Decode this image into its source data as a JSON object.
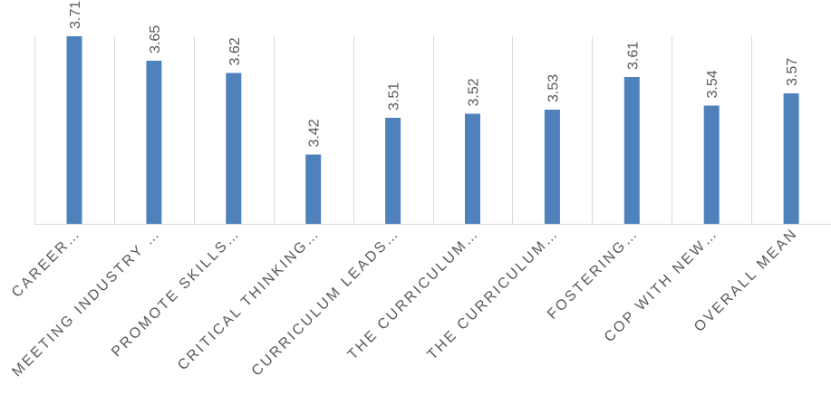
{
  "chart_data": {
    "type": "bar",
    "categories": [
      "CAREER…",
      "MEETING INDUSTRY …",
      "PROMOTE SKILLS…",
      "CRITICAL THINKING…",
      "CURRICULUM LEADS…",
      "THE CURRICULUM…",
      "THE CURRICULUM…",
      "FOSTERING…",
      "COP WITH NEW…",
      "OVERALL MEAN"
    ],
    "values": [
      3.71,
      3.65,
      3.62,
      3.42,
      3.51,
      3.52,
      3.53,
      3.61,
      3.54,
      3.57
    ],
    "data_labels": [
      "3.71",
      "3.65",
      "3.62",
      "3.42",
      "3.51",
      "3.52",
      "3.53",
      "3.61",
      "3.54",
      "3.57"
    ],
    "title": "",
    "xlabel": "",
    "ylabel": "",
    "ylim": [
      3.25,
      3.75
    ],
    "grid": "vertical category separators",
    "legend": "none",
    "bar_color": "#4f81bd",
    "label_color": "#595959",
    "grid_color": "#d9d9d9"
  }
}
